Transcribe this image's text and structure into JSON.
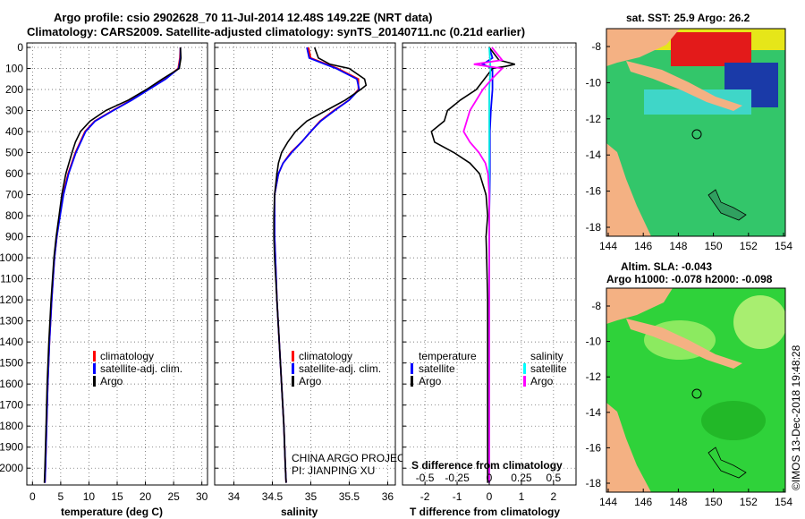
{
  "header": {
    "title_line1": "Argo profile: csio 2902628_70 11-Jul-2014 12.48S 149.22E (NRT data)",
    "title_line2": "Climatology: CARS2009. Satellite-adjusted climatology: synTS_20140711.nc (0.21d earlier)"
  },
  "colors": {
    "climatology": "#ff0000",
    "satellite": "#0000ff",
    "argo": "#000000",
    "salinity_satellite": "#00ffff",
    "salinity_argo": "#ff00ff",
    "land": "#f4b183",
    "ocean_sst": "#33cc66",
    "ocean_sla": "#33dd33"
  },
  "depth_axis": {
    "ticks": [
      "0",
      "100",
      "200",
      "300",
      "400",
      "500",
      "600",
      "700",
      "800",
      "900",
      "1000",
      "1100",
      "1200",
      "1300",
      "1400",
      "1500",
      "1600",
      "1700",
      "1800",
      "1900",
      "2000"
    ],
    "range": [
      0,
      2080
    ]
  },
  "chart_data": [
    {
      "type": "line",
      "id": "temperature",
      "xlabel": "temperature (deg C)",
      "xlim": [
        -1,
        31
      ],
      "xticks": [
        "0",
        "5",
        "10",
        "15",
        "20",
        "25",
        "30"
      ],
      "legend": [
        "climatology",
        "satellite-adj. clim.",
        "Argo"
      ],
      "series": [
        {
          "name": "climatology",
          "color": "red",
          "depth": [
            0,
            50,
            100,
            150,
            200,
            250,
            300,
            350,
            400,
            500,
            600,
            700,
            800,
            900,
            1000,
            1200,
            1400,
            1600,
            1800,
            2000,
            2070
          ],
          "values": [
            26.2,
            26.1,
            25.8,
            23.5,
            20.5,
            17.5,
            14.2,
            11.0,
            9.3,
            7.6,
            6.3,
            5.4,
            4.8,
            4.3,
            3.9,
            3.4,
            3.0,
            2.7,
            2.5,
            2.3,
            2.2
          ]
        },
        {
          "name": "satellite-adj. clim.",
          "color": "blue",
          "depth": [
            0,
            50,
            100,
            150,
            200,
            250,
            300,
            350,
            400,
            500,
            600,
            700,
            800,
            900,
            1000,
            1200,
            1400,
            1600,
            1800,
            2000,
            2070
          ],
          "values": [
            26.2,
            26.2,
            25.9,
            23.6,
            20.6,
            17.6,
            14.3,
            11.1,
            9.4,
            7.7,
            6.4,
            5.5,
            4.9,
            4.3,
            3.9,
            3.4,
            3.0,
            2.7,
            2.5,
            2.3,
            2.2
          ]
        },
        {
          "name": "Argo",
          "color": "black",
          "depth": [
            0,
            50,
            100,
            150,
            200,
            250,
            300,
            350,
            400,
            450,
            500,
            600,
            700,
            800,
            900,
            1000,
            1200,
            1400,
            1600,
            1800,
            2000,
            2070
          ],
          "values": [
            26.2,
            26.3,
            26.0,
            23.0,
            20.2,
            17.0,
            13.0,
            10.2,
            8.5,
            7.6,
            7.0,
            5.9,
            5.2,
            4.7,
            4.2,
            3.8,
            3.3,
            2.9,
            2.6,
            2.4,
            2.2,
            2.1
          ]
        }
      ]
    },
    {
      "type": "line",
      "id": "salinity",
      "xlabel": "salinity",
      "xlim": [
        33.75,
        36.1
      ],
      "xticks": [
        "34",
        "34.5",
        "35",
        "35.5",
        "36"
      ],
      "legend": [
        "climatology",
        "satellite-adj. clim.",
        "Argo"
      ],
      "series": [
        {
          "name": "climatology",
          "color": "red",
          "depth": [
            0,
            50,
            100,
            150,
            200,
            250,
            300,
            350,
            400,
            450,
            500,
            550,
            600,
            700,
            800,
            900,
            1000,
            1200,
            1400,
            1600,
            1800,
            2000,
            2070
          ],
          "values": [
            34.97,
            35.0,
            35.35,
            35.62,
            35.62,
            35.5,
            35.3,
            35.12,
            35.0,
            34.88,
            34.74,
            34.64,
            34.58,
            34.53,
            34.53,
            34.53,
            34.54,
            34.56,
            34.59,
            34.62,
            34.65,
            34.67,
            34.68
          ]
        },
        {
          "name": "satellite-adj. clim.",
          "color": "blue",
          "depth": [
            0,
            50,
            100,
            150,
            200,
            250,
            300,
            350,
            400,
            450,
            500,
            550,
            600,
            700,
            800,
            900,
            1000,
            1200,
            1400,
            1600,
            1800,
            2000,
            2070
          ],
          "values": [
            34.95,
            34.98,
            35.33,
            35.6,
            35.63,
            35.5,
            35.31,
            35.13,
            35.0,
            34.88,
            34.75,
            34.64,
            34.58,
            34.53,
            34.53,
            34.53,
            34.54,
            34.56,
            34.59,
            34.62,
            34.65,
            34.67,
            34.68
          ]
        },
        {
          "name": "Argo",
          "color": "black",
          "depth": [
            0,
            50,
            80,
            100,
            150,
            180,
            200,
            250,
            300,
            350,
            400,
            450,
            500,
            550,
            600,
            700,
            800,
            900,
            1000,
            1200,
            1400,
            1600,
            1800,
            2000,
            2070
          ],
          "values": [
            35.05,
            35.1,
            35.25,
            35.5,
            35.7,
            35.72,
            35.65,
            35.45,
            35.2,
            34.95,
            34.8,
            34.7,
            34.62,
            34.58,
            34.56,
            34.53,
            34.52,
            34.52,
            34.53,
            34.56,
            34.59,
            34.62,
            34.65,
            34.67,
            34.68
          ]
        }
      ]
    },
    {
      "type": "line",
      "id": "difference",
      "xlabel": "T difference from climatology",
      "xlabel2": "S difference from climatology",
      "xlim": [
        -2.7,
        2.7
      ],
      "xticks": [
        "-2",
        "-1",
        "0",
        "1",
        "2"
      ],
      "sticks": [
        "-0.5",
        "-0.25",
        "0",
        "0.25",
        "0.5"
      ],
      "legend_t_title": "temperature",
      "legend_s_title": "salinity",
      "legend_t": [
        "satellite",
        "Argo"
      ],
      "legend_s": [
        "satellite",
        "Argo"
      ],
      "series": [
        {
          "name": "T satellite",
          "color": "blue",
          "depth": [
            0,
            50,
            80,
            100,
            150,
            200,
            300,
            400,
            500,
            600,
            700,
            800,
            1000,
            1500,
            2070
          ],
          "values": [
            0.0,
            0.1,
            -0.2,
            0.1,
            0.1,
            0.1,
            0.05,
            0.02,
            0.02,
            0.02,
            0.01,
            0.0,
            0.0,
            0.0,
            0.0
          ]
        },
        {
          "name": "T Argo",
          "color": "black",
          "depth": [
            0,
            60,
            80,
            90,
            100,
            200,
            250,
            300,
            350,
            400,
            450,
            500,
            550,
            600,
            700,
            800,
            900,
            1000,
            1200,
            1500,
            1800,
            2070
          ],
          "values": [
            0.0,
            0.3,
            0.8,
            0.5,
            0.1,
            -0.4,
            -0.9,
            -1.3,
            -1.4,
            -1.8,
            -1.7,
            -1.1,
            -0.6,
            -0.3,
            -0.1,
            -0.05,
            -0.1,
            -0.08,
            -0.05,
            -0.05,
            -0.05,
            -0.05
          ]
        },
        {
          "name": "S satellite",
          "color": "cyan",
          "depth": [
            0,
            100,
            200,
            400,
            600,
            800,
            1000,
            1500,
            2070
          ],
          "values": [
            0.0,
            0.01,
            0.0,
            0.0,
            0.0,
            0.0,
            0.0,
            0.0,
            0.0
          ]
        },
        {
          "name": "S Argo",
          "color": "magenta",
          "depth": [
            0,
            60,
            80,
            100,
            150,
            200,
            300,
            400,
            450,
            500,
            550,
            600,
            700,
            800,
            1000,
            1500,
            2070
          ],
          "values": [
            0.02,
            0.1,
            -0.12,
            0.1,
            0.02,
            -0.05,
            -0.15,
            -0.2,
            -0.15,
            -0.08,
            -0.03,
            -0.01,
            0.0,
            0.0,
            0.0,
            0.0,
            0.0
          ]
        }
      ]
    }
  ],
  "maps": {
    "sst": {
      "title": "sat. SST: 25.9 Argo: 26.2",
      "lat_ticks": [
        "-8",
        "-10",
        "-12",
        "-14",
        "-16",
        "-18"
      ],
      "lon_ticks": [
        "144",
        "146",
        "148",
        "150",
        "152",
        "154"
      ]
    },
    "sla": {
      "title_line1": "Altim. SLA: -0.043",
      "title_line2": "Argo h1000: -0.078 h2000: -0.098",
      "lat_ticks": [
        "-8",
        "-10",
        "-12",
        "-14",
        "-16",
        "-18"
      ],
      "lon_ticks": [
        "144",
        "146",
        "148",
        "150",
        "152",
        "154"
      ]
    }
  },
  "credits": {
    "project": "CHINA ARGO PROJECT",
    "pi": "PI: JIANPING XU",
    "imos": "©IMOS 13-Dec-2018 19:48:28"
  }
}
